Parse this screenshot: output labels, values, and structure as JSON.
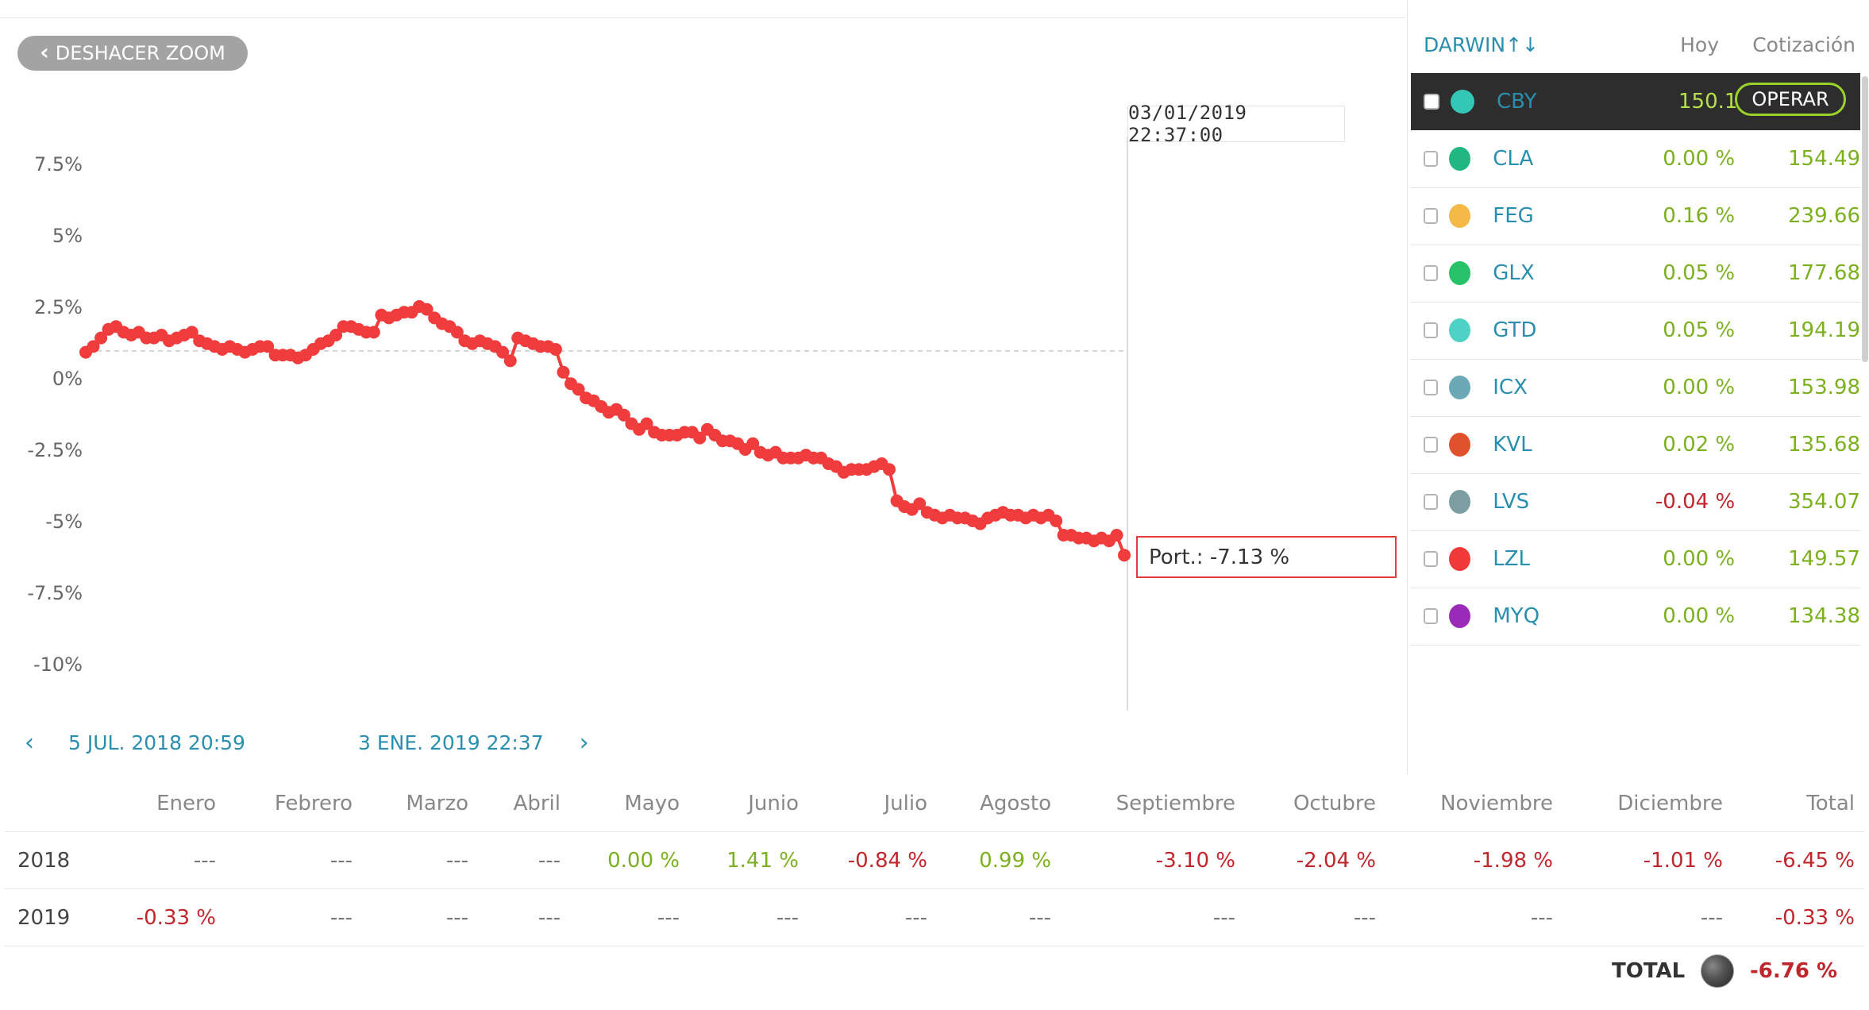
{
  "chart_toolbar": {
    "undo_zoom_label": "DESHACER ZOOM"
  },
  "chart_data": {
    "type": "line",
    "yticks": [
      "7.5%",
      "5%",
      "2.5%",
      "0%",
      "-2.5%",
      "-5%",
      "-7.5%",
      "-10%"
    ],
    "ylim": [
      -10,
      7.5
    ],
    "series": [
      {
        "color": "#f03c3c",
        "values": [
          0.9,
          1.1,
          1.4,
          1.7,
          1.8,
          1.6,
          1.5,
          1.6,
          1.4,
          1.4,
          1.5,
          1.3,
          1.4,
          1.5,
          1.6,
          1.3,
          1.2,
          1.1,
          1.0,
          1.1,
          1.0,
          0.9,
          1.0,
          1.1,
          1.1,
          0.8,
          0.8,
          0.8,
          0.7,
          0.8,
          1.0,
          1.2,
          1.3,
          1.5,
          1.8,
          1.8,
          1.7,
          1.6,
          1.6,
          2.2,
          2.1,
          2.2,
          2.3,
          2.3,
          2.5,
          2.4,
          2.1,
          1.9,
          1.8,
          1.6,
          1.3,
          1.2,
          1.3,
          1.2,
          1.1,
          0.9,
          0.6,
          1.4,
          1.3,
          1.2,
          1.1,
          1.1,
          1.0,
          0.2,
          -0.2,
          -0.4,
          -0.7,
          -0.8,
          -1.0,
          -1.2,
          -1.1,
          -1.3,
          -1.6,
          -1.8,
          -1.6,
          -1.9,
          -2.0,
          -2.0,
          -2.0,
          -1.9,
          -1.9,
          -2.1,
          -1.8,
          -2.0,
          -2.2,
          -2.2,
          -2.3,
          -2.5,
          -2.3,
          -2.6,
          -2.7,
          -2.6,
          -2.8,
          -2.8,
          -2.8,
          -2.7,
          -2.8,
          -2.8,
          -3.0,
          -3.1,
          -3.3,
          -3.2,
          -3.2,
          -3.2,
          -3.1,
          -3.0,
          -3.2,
          -4.3,
          -4.5,
          -4.6,
          -4.4,
          -4.7,
          -4.8,
          -4.9,
          -4.8,
          -4.9,
          -4.9,
          -5.0,
          -5.1,
          -4.9,
          -4.8,
          -4.7,
          -4.8,
          -4.8,
          -4.9,
          -4.8,
          -4.9,
          -4.8,
          -5.0,
          -5.5,
          -5.5,
          -5.6,
          -5.6,
          -5.7,
          -5.6,
          -5.7,
          -5.5,
          -6.2
        ]
      }
    ],
    "baseline_value": 0.9
  },
  "tooltip": {
    "date": "03/01/2019 22:37:00",
    "value": "Port.: -7.13 %"
  },
  "range_nav": {
    "start": "5 JUL. 2018 20:59",
    "end": "3 ENE. 2019 22:37"
  },
  "panel": {
    "headers": {
      "darwin": "DARWIN",
      "today": "Hoy",
      "price": "Cotización"
    },
    "sort_icon": "sort-arrows-icon",
    "operar_label": "OPERAR",
    "rows": [
      {
        "ticker": "CBY",
        "color": "#33c7b5",
        "today": "",
        "price": "150.19",
        "selected": true
      },
      {
        "ticker": "CLA",
        "color": "#20b880",
        "today": "0.00 %",
        "price": "154.49",
        "trend": "pos"
      },
      {
        "ticker": "FEG",
        "color": "#f5b94a",
        "today": "0.16 %",
        "price": "239.66",
        "trend": "pos"
      },
      {
        "ticker": "GLX",
        "color": "#27c26a",
        "today": "0.05 %",
        "price": "177.68",
        "trend": "pos"
      },
      {
        "ticker": "GTD",
        "color": "#4ed2c6",
        "today": "0.05 %",
        "price": "194.19",
        "trend": "pos"
      },
      {
        "ticker": "ICX",
        "color": "#6aa9b5",
        "today": "0.00 %",
        "price": "153.98",
        "trend": "pos"
      },
      {
        "ticker": "KVL",
        "color": "#e0522e",
        "today": "0.02 %",
        "price": "135.68",
        "trend": "pos"
      },
      {
        "ticker": "LVS",
        "color": "#7c9ea3",
        "today": "-0.04 %",
        "price": "354.07",
        "trend": "neg"
      },
      {
        "ticker": "LZL",
        "color": "#f03a3a",
        "today": "0.00 %",
        "price": "149.57",
        "trend": "pos"
      },
      {
        "ticker": "MYQ",
        "color": "#9a2ab8",
        "today": "0.00 %",
        "price": "134.38",
        "trend": "pos"
      }
    ]
  },
  "monthly": {
    "headers": [
      "Enero",
      "Febrero",
      "Marzo",
      "Abril",
      "Mayo",
      "Junio",
      "Julio",
      "Agosto",
      "Septiembre",
      "Octubre",
      "Noviembre",
      "Diciembre",
      "Total"
    ],
    "rows": [
      {
        "year": "2018",
        "values": [
          "---",
          "---",
          "---",
          "---",
          "0.00 %",
          "1.41 %",
          "-0.84 %",
          "0.99 %",
          "-3.10 %",
          "-2.04 %",
          "-1.98 %",
          "-1.01 %",
          "-6.45 %"
        ],
        "trend": [
          "",
          "",
          "",
          "",
          "pos",
          "pos",
          "neg",
          "pos",
          "neg",
          "neg",
          "neg",
          "neg",
          "neg"
        ]
      },
      {
        "year": "2019",
        "values": [
          "-0.33 %",
          "---",
          "---",
          "---",
          "---",
          "---",
          "---",
          "---",
          "---",
          "---",
          "---",
          "---",
          "-0.33 %"
        ],
        "trend": [
          "neg",
          "",
          "",
          "",
          "",
          "",
          "",
          "",
          "",
          "",
          "",
          "",
          "neg"
        ]
      }
    ],
    "total_label": "TOTAL",
    "total_value": "-6.76 %"
  }
}
